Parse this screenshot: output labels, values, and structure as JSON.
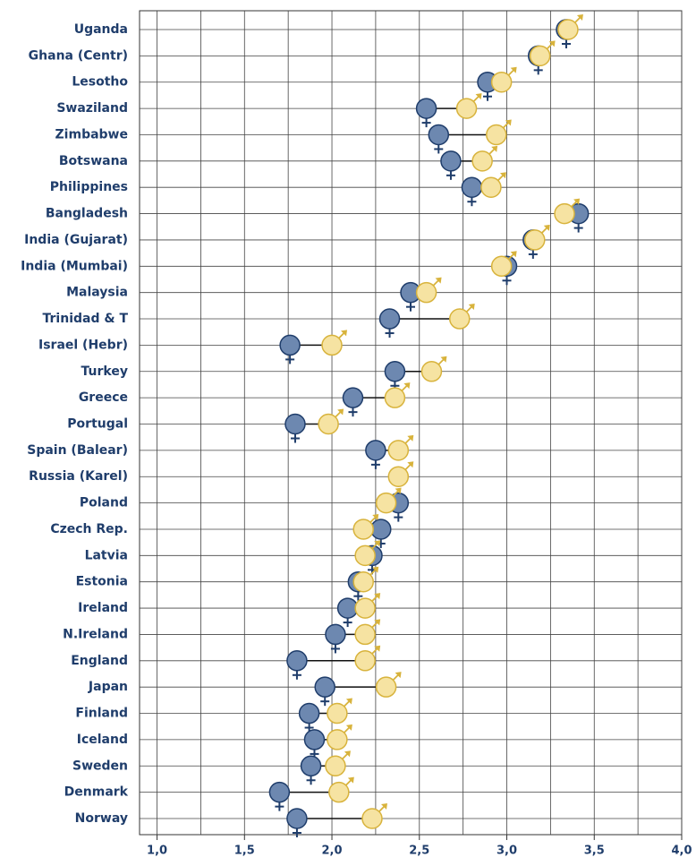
{
  "chart_data": {
    "type": "dumbbell",
    "categories": [
      "Uganda",
      "Ghana (Centr)",
      "Lesotho",
      "Swaziland",
      "Zimbabwe",
      "Botswana",
      "Philippines",
      "Bangladesh",
      "India (Gujarat)",
      "India (Mumbai)",
      "Malaysia",
      "Trinidad & T",
      "Israel (Hebr)",
      "Turkey",
      "Greece",
      "Portugal",
      "Spain (Balear)",
      "Russia (Karel)",
      "Poland",
      "Czech Rep.",
      "Latvia",
      "Estonia",
      "Ireland",
      "N.Ireland",
      "England",
      "Japan",
      "Finland",
      "Iceland",
      "Sweden",
      "Denmark",
      "Norway"
    ],
    "series": [
      {
        "color": "#6d88b0",
        "stroke": "#1f3d6b",
        "values": [
          3.34,
          3.18,
          2.89,
          2.54,
          2.61,
          2.68,
          2.8,
          3.41,
          3.15,
          3.0,
          2.45,
          2.33,
          1.76,
          2.36,
          2.12,
          1.79,
          2.25,
          null,
          2.38,
          2.28,
          2.23,
          2.15,
          2.09,
          2.02,
          1.8,
          1.96,
          1.87,
          1.9,
          1.88,
          1.7,
          1.8
        ]
      },
      {
        "color": "#f6e3a2",
        "stroke": "#d8b33c",
        "values": [
          3.35,
          3.19,
          2.97,
          2.77,
          2.94,
          2.86,
          2.91,
          3.33,
          3.16,
          2.97,
          2.54,
          2.73,
          2.0,
          2.57,
          2.36,
          1.98,
          2.38,
          2.38,
          2.31,
          2.18,
          2.19,
          2.18,
          2.19,
          2.19,
          2.19,
          2.31,
          2.03,
          2.03,
          2.02,
          2.04,
          2.23
        ]
      }
    ],
    "xlim": [
      0.9,
      4.0
    ],
    "xticks": [
      {
        "value": 1.0,
        "label": "1,0"
      },
      {
        "value": 1.5,
        "label": "1,5"
      },
      {
        "value": 2.0,
        "label": "2,0"
      },
      {
        "value": 2.5,
        "label": "2,5"
      },
      {
        "value": 3.0,
        "label": "3,0"
      },
      {
        "value": 3.5,
        "label": "3,5"
      },
      {
        "value": 4.0,
        "label": "4,0"
      }
    ],
    "x_minor_ticks": [
      1.25,
      1.75,
      2.25,
      2.75,
      3.25,
      3.75
    ],
    "grid": true
  }
}
